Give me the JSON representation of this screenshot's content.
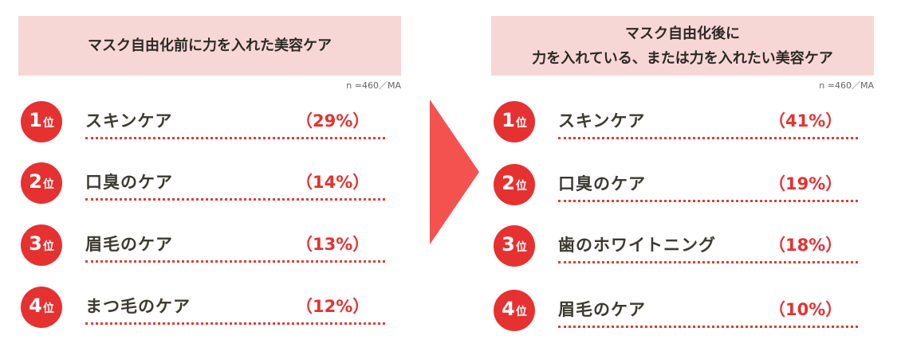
{
  "left": {
    "title_lines": [
      "マスク自由化前に力を入れた美容ケア"
    ],
    "sample": "n =460／MA",
    "rank_unit": "位",
    "items": [
      {
        "rank": "1",
        "label": "スキンケア",
        "pct": "（29%）",
        "value": 29
      },
      {
        "rank": "2",
        "label": "口臭のケア",
        "pct": "（14%）",
        "value": 14
      },
      {
        "rank": "3",
        "label": "眉毛のケア",
        "pct": "（13%）",
        "value": 13
      },
      {
        "rank": "4",
        "label": "まつ毛のケア",
        "pct": "（12%）",
        "value": 12
      }
    ]
  },
  "right": {
    "title_lines": [
      "マスク自由化後に",
      "力を入れている、または力を入れたい美容ケア"
    ],
    "sample": "n =460／MA",
    "rank_unit": "位",
    "items": [
      {
        "rank": "1",
        "label": "スキンケア",
        "pct": "（41%）",
        "value": 41
      },
      {
        "rank": "2",
        "label": "口臭のケア",
        "pct": "（19%）",
        "value": 19
      },
      {
        "rank": "3",
        "label": "歯のホワイトニング",
        "pct": "（18%）",
        "value": 18
      },
      {
        "rank": "4",
        "label": "眉毛のケア",
        "pct": "（10%）",
        "value": 10
      }
    ]
  },
  "colors": {
    "accent": "#e63131",
    "header_bg": "#f7d7d5",
    "arrow": "#f4524f"
  },
  "chart_data": [
    {
      "type": "table",
      "title": "マスク自由化前に力を入れた美容ケア",
      "categories": [
        "スキンケア",
        "口臭のケア",
        "眉毛のケア",
        "まつ毛のケア"
      ],
      "values": [
        29,
        14,
        13,
        12
      ]
    },
    {
      "type": "table",
      "title": "マスク自由化後に力を入れている、または力を入れたい美容ケア",
      "categories": [
        "スキンケア",
        "口臭のケア",
        "歯のホワイトニング",
        "眉毛のケア"
      ],
      "values": [
        41,
        19,
        18,
        10
      ]
    }
  ]
}
